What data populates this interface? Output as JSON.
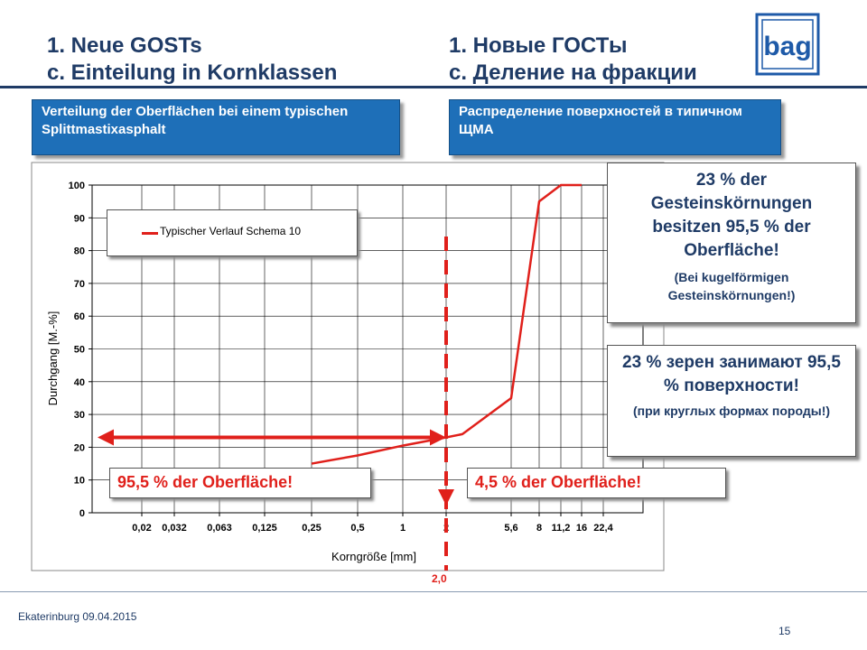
{
  "header": {
    "de_line1": "1. Neue GOSTs",
    "de_line2": "c. Einteilung in Kornklassen",
    "ru_line1": "1. Новые ГОСТы",
    "ru_line2": "с. Деление на фракции",
    "logo_text": "bag"
  },
  "boxes": {
    "de_subtitle": "Verteilung der Oberflächen bei einem typischen Splittmastixasphalt",
    "ru_subtitle": "Распределение поверхностей в типичном ЩМА",
    "de_note_main": "23 % der Gesteinskörnungen besitzen 95,5 % der Oberfläche!",
    "de_note_sub": "(Bei kugelförmigen Gesteinskörnungen!)",
    "ru_note_main": "23 % зерен занимают 95,5 % поверхности!",
    "ru_note_sub": "(при круглых формах породы!)",
    "left_label": "95,5 % der Oberfläche!",
    "right_label": "4,5 % der Oberfläche!",
    "marker_label": "2,0"
  },
  "chart_data": {
    "type": "line",
    "xlabel": "Korngröße [mm]",
    "ylabel": "Durchgang [M.-%]",
    "ylim": [
      0,
      100
    ],
    "yticks": [
      0,
      10,
      20,
      30,
      40,
      50,
      60,
      70,
      80,
      90,
      100
    ],
    "x_scale": "log",
    "x_tick_labels": [
      "0,02",
      "0,032",
      "0,063",
      "0,125",
      "0,25",
      "0,5",
      "1",
      "2",
      "5,6",
      "8",
      "11,2",
      "16",
      "22,4"
    ],
    "legend": "top-left",
    "grid": true,
    "series": [
      {
        "name": "Typischer Verlauf Schema 10",
        "color": "#e0201b",
        "points": [
          {
            "x": "0,25",
            "y": 15
          },
          {
            "x": "0,5",
            "y": 17.5
          },
          {
            "x": "1",
            "y": 20.5
          },
          {
            "x": "2",
            "y": 23
          },
          {
            "x": "2.8",
            "y": 24
          },
          {
            "x": "5,6",
            "y": 35
          },
          {
            "x": "8",
            "y": 95
          },
          {
            "x": "11,2",
            "y": 100
          },
          {
            "x": "16",
            "y": 100
          }
        ]
      }
    ],
    "marker_x": "2,0"
  },
  "footer": {
    "place_date": "Ekaterinburg 09.04.2015",
    "page_number": "15"
  },
  "colors": {
    "title": "#1f3b66",
    "accent_blue": "#1e6fb8",
    "series_red": "#e0201b"
  }
}
